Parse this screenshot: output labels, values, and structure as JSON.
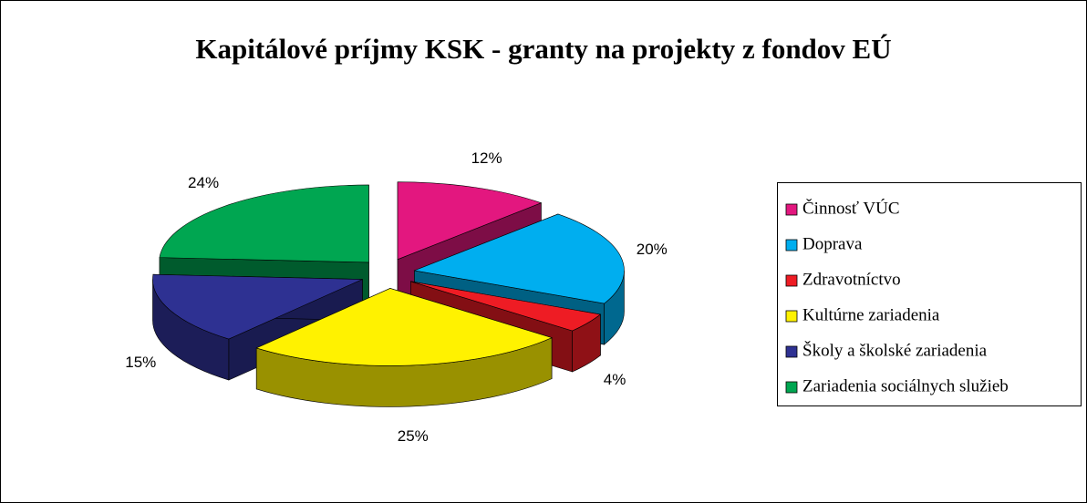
{
  "chart_data": {
    "type": "pie3d",
    "title": "Kapitálové príjmy KSK - granty na projekty z fondov EÚ",
    "categories": [
      "Činnosť VÚC",
      "Doprava",
      "Zdravotníctvo",
      "Kultúrne zariadenia",
      "Školy a školské zariadenia",
      "Zariadenia sociálnych služieb"
    ],
    "values": [
      12,
      20,
      4,
      25,
      15,
      24
    ],
    "value_labels": [
      "12%",
      "20%",
      "4%",
      "25%",
      "15%",
      "24%"
    ],
    "colors": [
      "#e3177f",
      "#00aeef",
      "#ee1c24",
      "#fff200",
      "#2e3192",
      "#00a651"
    ],
    "legend": "right"
  }
}
